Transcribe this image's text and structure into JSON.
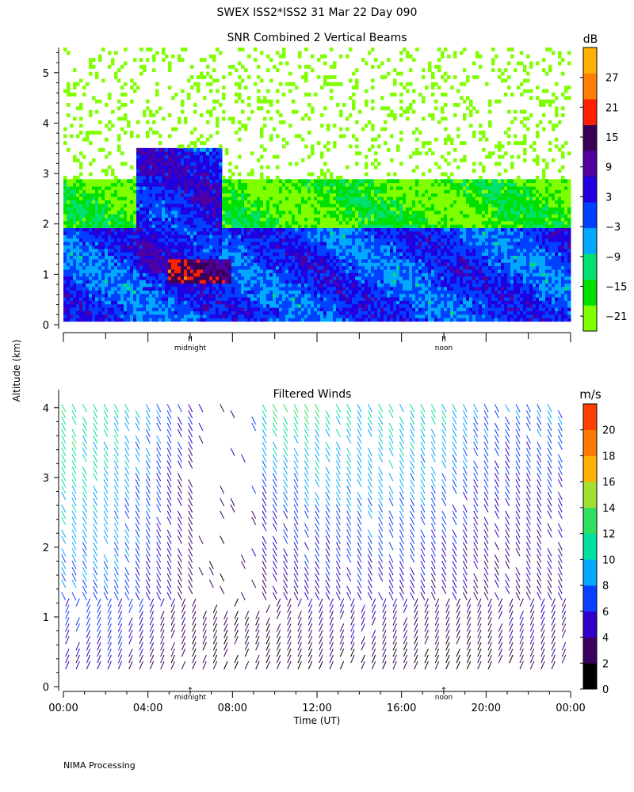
{
  "figure": {
    "title": "SWEX ISS2*ISS2  31 Mar 22 Day 090",
    "ylabel": "Altitude (km)",
    "footer": "NIMA Processing"
  },
  "chart_data": [
    {
      "type": "heatmap",
      "title": "SNR Combined 2 Vertical Beams",
      "xlabel": "",
      "ylabel": "Altitude (km)",
      "xlim": [
        0,
        24
      ],
      "ylim": [
        0,
        5.5
      ],
      "y_ticks": [
        0,
        1,
        2,
        3,
        4,
        5
      ],
      "x_ticks_hours": [
        0,
        4,
        8,
        12,
        16,
        20,
        24
      ],
      "x_markers": [
        {
          "hour": 6,
          "symbol": "II",
          "label": "midnight"
        },
        {
          "hour": 18,
          "symbol": "II",
          "label": "noon"
        }
      ],
      "colorbar": {
        "unit": "dB",
        "range": [
          -24,
          33
        ],
        "tick_labels": [
          "27",
          "21",
          "15",
          "9",
          "3",
          "−3",
          "−9",
          "−15",
          "−21"
        ],
        "tick_values": [
          27,
          21,
          15,
          9,
          3,
          -3,
          -9,
          -15,
          -21
        ],
        "bin_colors": [
          "#80ff00",
          "#00e000",
          "#00e070",
          "#00a8ff",
          "#0040ff",
          "#2000e0",
          "#5000a0",
          "#3a0058",
          "#ff2000",
          "#ff8000",
          "#ffb000"
        ]
      },
      "layers": [
        {
          "name": "sparse noise",
          "alt_range_km": [
            2.5,
            5.5
          ],
          "snr_db": -21,
          "coverage": "scattered"
        },
        {
          "name": "upper boundary layer",
          "alt_range_km": [
            1.8,
            2.9
          ],
          "snr_db": -18,
          "hours": [
            0,
            24
          ]
        },
        {
          "name": "convective plume",
          "alt_range_km": [
            1.0,
            3.5
          ],
          "snr_db": 3,
          "hours": [
            3.5,
            7.5
          ]
        },
        {
          "name": "main layer",
          "alt_range_km": [
            0.1,
            1.9
          ],
          "snr_db": 0,
          "hours": [
            0,
            24
          ]
        },
        {
          "name": "strong return",
          "alt_range_km": [
            0.8,
            1.3
          ],
          "snr_db": 14,
          "hours": [
            5,
            8
          ]
        }
      ]
    },
    {
      "type": "wind-barbs",
      "title": "Filtered Winds",
      "xlabel": "Time (UT)",
      "ylabel": "Altitude (km)",
      "xlim": [
        0,
        24
      ],
      "ylim": [
        0,
        4.1
      ],
      "y_ticks": [
        0,
        1,
        2,
        3,
        4
      ],
      "x_tick_labels": [
        "00:00",
        "04:00",
        "08:00",
        "12:00",
        "16:00",
        "20:00",
        "00:00"
      ],
      "x_ticks_hours": [
        0,
        4,
        8,
        12,
        16,
        20,
        24
      ],
      "x_markers": [
        {
          "hour": 6,
          "symbol": "↑",
          "label": "midnight"
        },
        {
          "hour": 18,
          "symbol": "↑",
          "label": "noon"
        }
      ],
      "colorbar": {
        "unit": "m/s",
        "range": [
          0,
          22
        ],
        "tick_labels": [
          "20",
          "18",
          "16",
          "14",
          "12",
          "10",
          "8",
          "6",
          "4",
          "2",
          "0"
        ],
        "tick_values": [
          20,
          18,
          16,
          14,
          12,
          10,
          8,
          6,
          4,
          2,
          0
        ],
        "bin_colors": [
          "#000000",
          "#3c0060",
          "#3000c8",
          "#0a40ff",
          "#00a8ff",
          "#00e0a0",
          "#30e060",
          "#a0e030",
          "#ffb000",
          "#ff7a00",
          "#ff4000"
        ]
      },
      "profiles": [
        {
          "hour": 0.0,
          "speed_ms": [
            4,
            6,
            9,
            11,
            12
          ]
        },
        {
          "hour": 2.0,
          "speed_ms": [
            5,
            7,
            9,
            10,
            11
          ]
        },
        {
          "hour": 4.0,
          "speed_ms": [
            3,
            5,
            7,
            8,
            9
          ]
        },
        {
          "hour": 6.0,
          "speed_ms": [
            2,
            3,
            3,
            4,
            6
          ]
        },
        {
          "hour": 8.0,
          "speed_ms": [
            1,
            2,
            2,
            3,
            4
          ]
        },
        {
          "hour": 10.0,
          "speed_ms": [
            2,
            3,
            5,
            8,
            13
          ]
        },
        {
          "hour": 12.0,
          "speed_ms": [
            2,
            4,
            6,
            9,
            12
          ]
        },
        {
          "hour": 14.0,
          "speed_ms": [
            2,
            5,
            7,
            9,
            10
          ]
        },
        {
          "hour": 16.0,
          "speed_ms": [
            2,
            4,
            7,
            9,
            11
          ]
        },
        {
          "hour": 18.0,
          "speed_ms": [
            1,
            3,
            6,
            8,
            10
          ]
        },
        {
          "hour": 20.0,
          "speed_ms": [
            2,
            3,
            4,
            6,
            8
          ]
        },
        {
          "hour": 22.0,
          "speed_ms": [
            3,
            4,
            4,
            6,
            8
          ]
        }
      ],
      "altitude_levels_km": [
        0.2,
        1.0,
        2.0,
        3.0,
        4.0
      ]
    }
  ]
}
